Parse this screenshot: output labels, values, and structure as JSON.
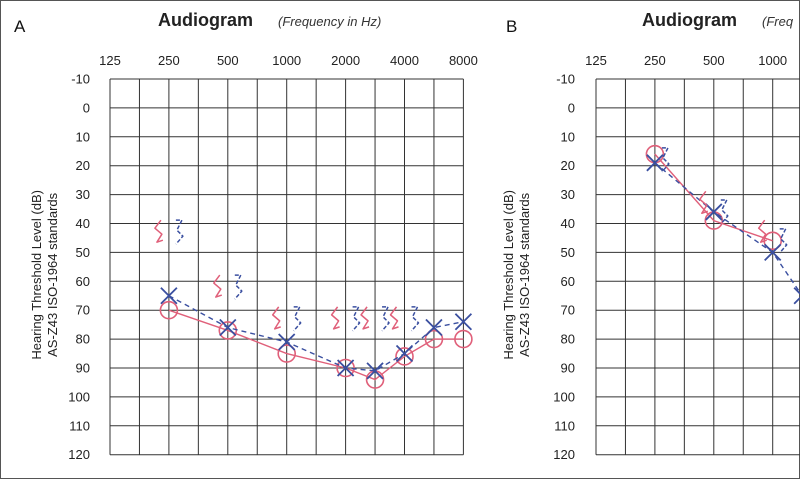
{
  "chart_data": [
    {
      "panel": "A",
      "type": "line",
      "title": "Audiogram",
      "subtitle": "(Frequency in Hz)",
      "x_ticks": [
        "125",
        "250",
        "500",
        "1000",
        "2000",
        "4000",
        "8000"
      ],
      "y_ticks": [
        "-10",
        "0",
        "10",
        "20",
        "30",
        "40",
        "50",
        "60",
        "70",
        "80",
        "90",
        "100",
        "110",
        "120"
      ],
      "ylabel_lines": [
        "Hearing Threshold Level (dB)",
        "AS-Z43 ISO-1964 standards"
      ],
      "ylim": [
        -10,
        120
      ],
      "series": [
        {
          "marker": "circle",
          "color": "#e0607a",
          "dash": "solid",
          "points": [
            [
              250,
              70
            ],
            [
              500,
              77
            ],
            [
              1000,
              85
            ],
            [
              2000,
              90
            ],
            [
              3000,
              94
            ],
            [
              4000,
              86
            ],
            [
              6000,
              80
            ],
            [
              8000,
              80
            ]
          ]
        },
        {
          "marker": "x",
          "color": "#3a4fa0",
          "dash": "dashed",
          "points": [
            [
              250,
              65
            ],
            [
              500,
              76
            ],
            [
              1000,
              81
            ],
            [
              2000,
              90
            ],
            [
              3000,
              91
            ],
            [
              4000,
              85
            ],
            [
              6000,
              76
            ],
            [
              8000,
              74
            ]
          ]
        }
      ],
      "bone_conduction": [
        {
          "ear": "right",
          "color": "#e0607a",
          "points": [
            [
              250,
              43
            ],
            [
              500,
              62
            ],
            [
              1000,
              73
            ],
            [
              2000,
              73
            ],
            [
              3000,
              73
            ],
            [
              4000,
              73
            ]
          ]
        },
        {
          "ear": "left",
          "color": "#3a4fa0",
          "points": [
            [
              250,
              43
            ],
            [
              500,
              62
            ],
            [
              1000,
              73
            ],
            [
              2000,
              73
            ],
            [
              3000,
              73
            ],
            [
              4000,
              73
            ]
          ]
        }
      ]
    },
    {
      "panel": "B",
      "type": "line",
      "title": "Audiogram",
      "subtitle": "(Freq",
      "x_ticks": [
        "125",
        "250",
        "500",
        "1000"
      ],
      "y_ticks": [
        "-10",
        "0",
        "10",
        "20",
        "30",
        "40",
        "50",
        "60",
        "70",
        "80",
        "90",
        "100",
        "110",
        "120"
      ],
      "ylabel_lines": [
        "Hearing Threshold Level (dB)",
        "AS-Z43 ISO-1964 standards"
      ],
      "ylim": [
        -10,
        120
      ],
      "series": [
        {
          "marker": "circle",
          "color": "#e0607a",
          "dash": "solid",
          "points": [
            [
              250,
              16
            ],
            [
              500,
              39
            ],
            [
              1000,
              46
            ]
          ]
        },
        {
          "marker": "x",
          "color": "#3a4fa0",
          "dash": "dashed",
          "points": [
            [
              250,
              19
            ],
            [
              500,
              36
            ],
            [
              1000,
              50
            ],
            [
              1500,
              65
            ]
          ]
        }
      ],
      "bone_conduction": [
        {
          "ear": "right",
          "color": "#e0607a",
          "points": [
            [
              500,
              33
            ],
            [
              1000,
              43
            ]
          ]
        },
        {
          "ear": "left",
          "color": "#3a4fa0",
          "points": [
            [
              250,
              18
            ],
            [
              500,
              36
            ],
            [
              1000,
              46
            ]
          ]
        }
      ]
    }
  ]
}
